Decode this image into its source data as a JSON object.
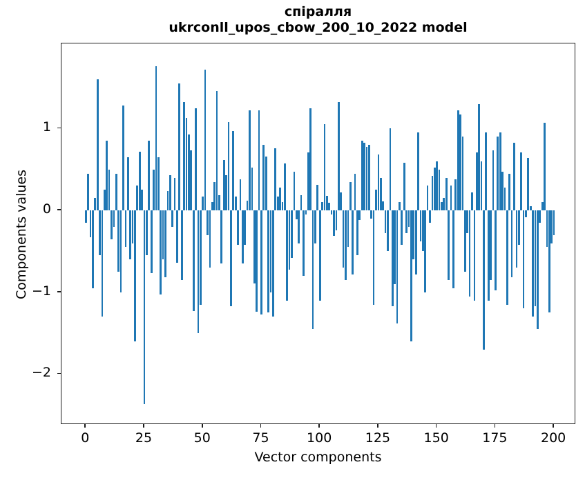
{
  "chart_data": {
    "type": "bar",
    "title_line1": "спіралля",
    "title_line2": "ukrconll_upos_cbow_200_10_2022 model",
    "xlabel": "Vector components",
    "ylabel": "Components values",
    "bar_color": "#1f77b4",
    "legend": "none",
    "grid": false,
    "xlim": [
      -10.4,
      209.4
    ],
    "ylim": [
      -2.62,
      2.04
    ],
    "bar_width_units": 0.8,
    "x_ticks": [
      {
        "v": 0,
        "label": "0"
      },
      {
        "v": 25,
        "label": "25"
      },
      {
        "v": 50,
        "label": "50"
      },
      {
        "v": 75,
        "label": "75"
      },
      {
        "v": 100,
        "label": "100"
      },
      {
        "v": 125,
        "label": "125"
      },
      {
        "v": 150,
        "label": "150"
      },
      {
        "v": 175,
        "label": "175"
      },
      {
        "v": 200,
        "label": "200"
      }
    ],
    "y_ticks": [
      {
        "v": 1,
        "label": "1"
      },
      {
        "v": 0,
        "label": "0"
      },
      {
        "v": -1,
        "label": "−1"
      },
      {
        "v": -2,
        "label": "−2"
      }
    ],
    "x_is_index": true,
    "values": [
      -0.15,
      0.45,
      -0.33,
      -0.95,
      0.15,
      1.6,
      -0.55,
      -1.3,
      0.25,
      0.85,
      0.5,
      -0.35,
      -0.2,
      0.45,
      -0.75,
      -1.0,
      1.28,
      -0.45,
      0.65,
      -0.6,
      -0.4,
      -1.6,
      0.3,
      0.72,
      0.25,
      -2.37,
      -0.55,
      0.85,
      -0.77,
      0.5,
      1.76,
      0.65,
      -1.03,
      -0.6,
      -0.82,
      0.24,
      0.43,
      -0.2,
      0.4,
      -0.64,
      1.55,
      -0.85,
      1.32,
      1.13,
      0.93,
      0.73,
      -1.23,
      1.25,
      -1.5,
      -1.15,
      0.17,
      1.72,
      -0.3,
      -0.7,
      0.1,
      0.35,
      1.46,
      0.19,
      -0.65,
      0.62,
      0.43,
      1.08,
      -1.17,
      0.97,
      0.17,
      -0.42,
      0.38,
      -0.65,
      -0.42,
      0.12,
      1.22,
      0.52,
      -0.89,
      -1.24,
      1.22,
      -1.27,
      0.8,
      0.66,
      -1.25,
      -1.0,
      -1.3,
      0.76,
      0.17,
      0.28,
      0.1,
      0.57,
      -1.1,
      -0.72,
      -0.58,
      0.47,
      -0.11,
      -0.4,
      0.19,
      -0.8,
      -0.05,
      0.71,
      1.25,
      -1.45,
      -0.4,
      0.31,
      -1.1,
      0.1,
      1.05,
      0.18,
      0.09,
      -0.05,
      -0.31,
      -0.24,
      1.32,
      0.22,
      -0.7,
      -0.85,
      -0.45,
      0.35,
      -0.78,
      0.45,
      -0.55,
      -0.12,
      0.85,
      0.83,
      0.78,
      0.8,
      -0.1,
      -1.15,
      0.25,
      0.68,
      0.4,
      0.11,
      -0.28,
      -0.5,
      1.0,
      -1.17,
      -0.9,
      -1.38,
      0.1,
      -0.42,
      0.58,
      -0.28,
      -0.2,
      -1.6,
      -0.6,
      -0.78,
      0.95,
      -0.38,
      -0.5,
      -1.0,
      0.3,
      -0.15,
      0.42,
      0.52,
      0.6,
      0.5,
      0.1,
      0.15,
      0.4,
      -0.85,
      0.3,
      -0.95,
      0.38,
      1.22,
      1.17,
      0.9,
      -0.75,
      -0.28,
      -1.05,
      0.22,
      -1.1,
      0.71,
      1.3,
      0.6,
      -1.7,
      0.95,
      -1.1,
      -0.85,
      0.73,
      -0.98,
      0.9,
      0.95,
      0.47,
      0.28,
      -1.15,
      0.45,
      -0.82,
      0.83,
      -0.7,
      -0.42,
      0.71,
      -1.2,
      -0.08,
      0.64,
      0.05,
      -1.3,
      -1.17,
      -1.45,
      -0.15,
      0.1,
      1.07,
      -0.45,
      -1.25,
      -0.4,
      -0.3
    ]
  }
}
